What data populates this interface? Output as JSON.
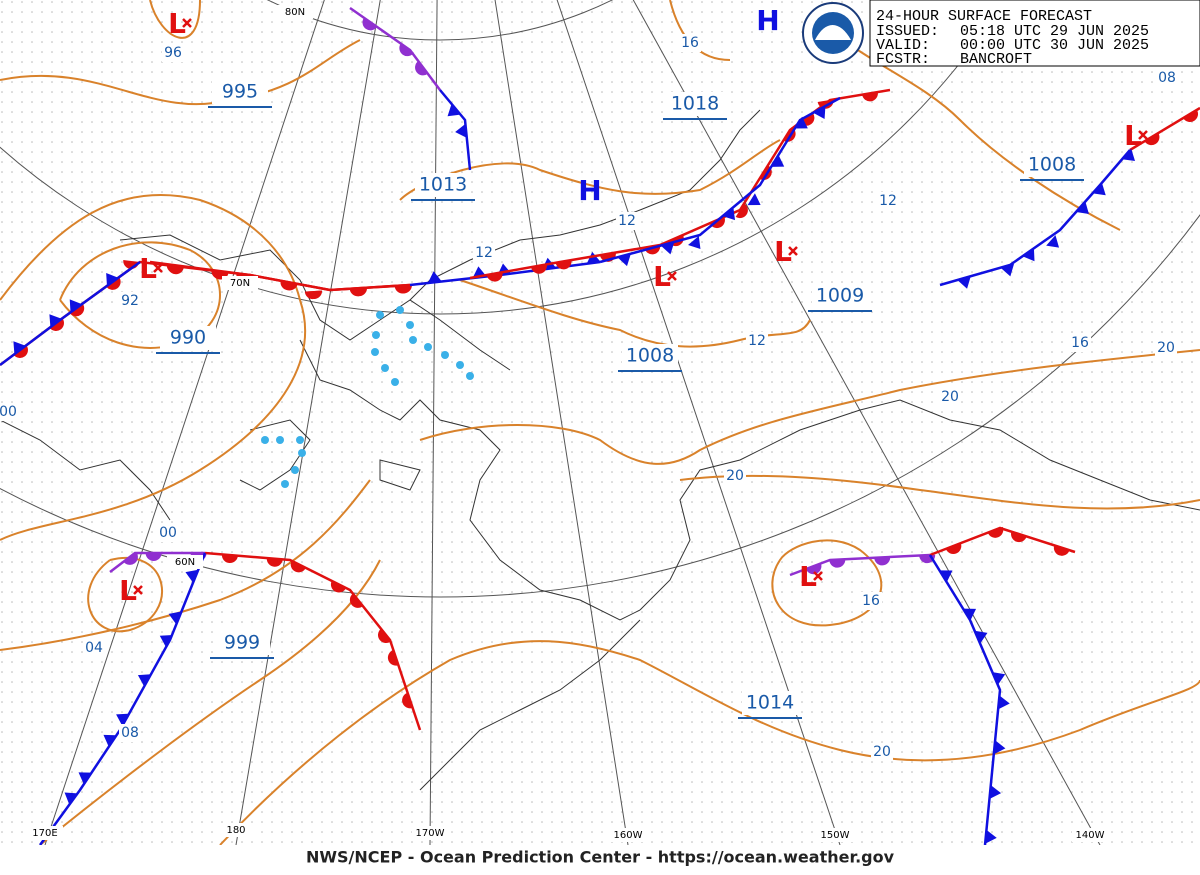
{
  "header": {
    "title": "24-HOUR SURFACE FORECAST",
    "issued_label": "ISSUED:",
    "issued": "05:18 UTC 29 JUN 2025",
    "valid_label": "VALID:",
    "valid": "00:00 UTC 30 JUN 2025",
    "forecaster_label": "FCSTR:",
    "forecaster": "BANCROFT"
  },
  "highs": [
    "H",
    "H"
  ],
  "lows": [
    "L",
    "L",
    "L",
    "L",
    "L",
    "L",
    "L"
  ],
  "pressure_labels": [
    "995",
    "1013",
    "1018",
    "1008",
    "990",
    "1008",
    "1009",
    "999",
    "1014"
  ],
  "isobar_labels": [
    "96",
    "16",
    "08",
    "12",
    "12",
    "12",
    "92",
    "12",
    "16",
    "20",
    "20",
    "00",
    "20",
    "00",
    "04",
    "16",
    "08",
    "20"
  ],
  "grid_labels": [
    "80N",
    "70N",
    "60N",
    "170E",
    "180",
    "170W",
    "160W",
    "150W",
    "140W"
  ],
  "footer": "NWS/NCEP - Ocean Prediction Center - https://ocean.weather.gov"
}
